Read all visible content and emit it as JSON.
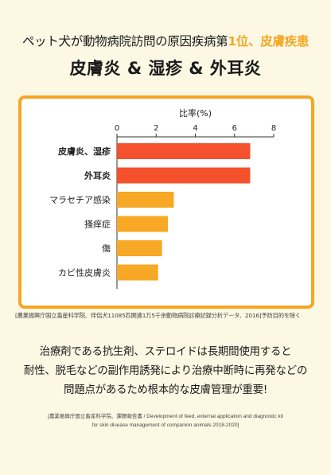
{
  "headline": {
    "part1": "ペット犬が動物病院訪問の原因疾病第",
    "part2": "1位、皮膚疾患"
  },
  "subheadline": "皮膚炎 & 湿疹 & 外耳炎",
  "colors": {
    "accent": "#f5a623",
    "bar_top": "#f4512c",
    "bar_other": "#f7a824",
    "background": "#fdf8e4"
  },
  "chart_data": {
    "type": "bar",
    "orientation": "horizontal",
    "xlabel": "比率(%)",
    "xlim": [
      0,
      8
    ],
    "xticks": [
      0,
      2,
      4,
      6,
      8
    ],
    "categories": [
      "皮膚炎、湿疹",
      "外耳炎",
      "マラセチア感染",
      "掻痒症",
      "傷",
      "カビ性皮膚炎"
    ],
    "values": [
      6.8,
      6.8,
      2.9,
      2.6,
      2.3,
      2.1
    ],
    "bold_categories": [
      "皮膚炎、湿疹",
      "外耳炎"
    ],
    "grid": false
  },
  "source1": "[農業振興庁国立畜産科学院、伴侶犬11085匹関連1万5千余動物病院診療記録分析データ、2016]予防目的を除く",
  "body": {
    "line1": "治療剤である抗生剤、ステロイドは長期間使用すると",
    "line2": "耐性、脱毛などの副作用誘発により治療中断時に再発などの",
    "line3": "問題点があるため根本的な皮膚管理が重要!"
  },
  "source2": {
    "line1": "[農業振興庁国立畜産科学院、課題報告書 / Development of feed, external application and diagnostic kit",
    "line2": "for skin disease management of companion animals 2018-2020]"
  }
}
